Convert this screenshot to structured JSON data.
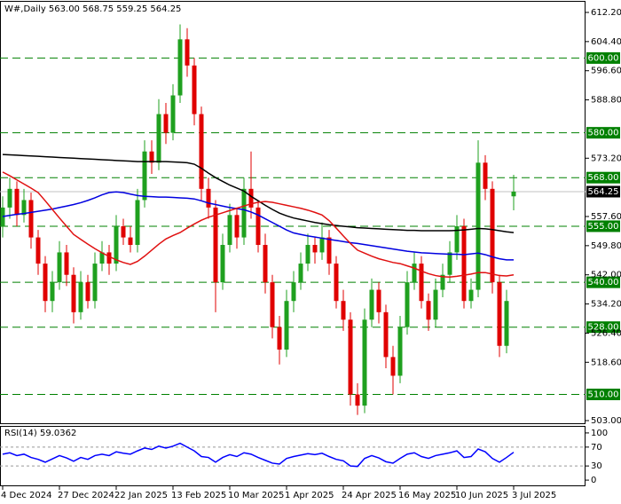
{
  "chart_data": [
    {
      "type": "candlestick",
      "title": "W#,Daily  563.00 568.75 559.25 564.25",
      "categories": [
        "4 Dec 2024",
        null,
        null,
        null,
        null,
        null,
        null,
        null,
        "27 Dec 2024",
        null,
        null,
        null,
        null,
        null,
        null,
        null,
        "22 Jan 2025",
        null,
        null,
        null,
        null,
        null,
        null,
        null,
        "13 Feb 2025",
        null,
        null,
        null,
        null,
        null,
        null,
        null,
        "10 Mar 2025",
        null,
        null,
        null,
        null,
        null,
        null,
        null,
        "1 Apr 2025",
        null,
        null,
        null,
        null,
        null,
        null,
        null,
        "24 Apr 2025",
        null,
        null,
        null,
        null,
        null,
        null,
        null,
        "16 May 2025",
        null,
        null,
        null,
        null,
        null,
        null,
        null,
        "10 Jun 2025",
        null,
        null,
        null,
        null,
        null,
        null,
        null,
        "3 Jul 2025"
      ],
      "open": [
        555,
        560,
        565,
        558,
        562,
        552,
        545,
        535,
        540,
        548,
        542,
        532,
        540,
        535,
        545,
        548,
        545,
        555,
        552,
        550,
        562,
        575,
        572,
        585,
        580,
        590,
        605,
        598,
        585,
        565,
        560,
        540,
        550,
        558,
        552,
        565,
        560,
        550,
        540,
        528,
        522,
        535,
        540,
        545,
        550,
        548,
        552,
        545,
        535,
        530,
        510,
        507,
        530,
        538,
        532,
        520,
        515,
        528,
        540,
        545,
        535,
        530,
        538,
        542,
        548,
        555,
        535,
        538,
        572,
        565,
        540,
        523,
        563
      ],
      "high": [
        563,
        568,
        567,
        565,
        564,
        554,
        547,
        543,
        551,
        550,
        544,
        543,
        542,
        548,
        551,
        550,
        558,
        557,
        555,
        565,
        578,
        578,
        589,
        588,
        593,
        609,
        608,
        600,
        587,
        568,
        562,
        553,
        561,
        560,
        568,
        575,
        562,
        553,
        542,
        531,
        538,
        543,
        548,
        553,
        552,
        556,
        554,
        547,
        538,
        532,
        513,
        533,
        541,
        540,
        534,
        523,
        531,
        543,
        548,
        547,
        537,
        541,
        545,
        551,
        558,
        557,
        541,
        578,
        574,
        567,
        542,
        538,
        568.75
      ],
      "low": [
        552,
        557,
        555,
        556,
        549,
        542,
        532,
        532,
        538,
        539,
        529,
        530,
        533,
        533,
        543,
        542,
        543,
        550,
        548,
        548,
        560,
        569,
        570,
        577,
        578,
        588,
        595,
        582,
        562,
        557,
        532,
        538,
        548,
        549,
        550,
        557,
        548,
        537,
        525,
        518,
        520,
        532,
        538,
        543,
        545,
        546,
        542,
        533,
        527,
        507,
        504.5,
        505,
        528,
        529,
        517,
        510,
        513,
        526,
        538,
        533,
        527,
        528,
        536,
        540,
        546,
        533,
        533,
        536,
        562,
        537,
        520,
        521,
        559.25
      ],
      "close": [
        560,
        565,
        558,
        562,
        552,
        545,
        535,
        540,
        548,
        542,
        532,
        540,
        535,
        545,
        548,
        545,
        555,
        552,
        550,
        562,
        575,
        572,
        585,
        580,
        590,
        605,
        598,
        585,
        565,
        560,
        540,
        550,
        558,
        552,
        565,
        560,
        550,
        540,
        528,
        522,
        535,
        540,
        545,
        550,
        548,
        552,
        545,
        535,
        530,
        510,
        507,
        530,
        538,
        532,
        520,
        515,
        528,
        540,
        545,
        535,
        530,
        538,
        542,
        548,
        555,
        535,
        538,
        572,
        565,
        540,
        523,
        535,
        564.25
      ],
      "up_color": "#1fa01f",
      "down_color": "#e00000",
      "series": [
        {
          "color": "#000000",
          "values": [
            574.2,
            574.1,
            574.0,
            573.9,
            573.8,
            573.7,
            573.6,
            573.5,
            573.4,
            573.3,
            573.2,
            573.1,
            573.0,
            572.9,
            572.8,
            572.7,
            572.6,
            572.5,
            572.4,
            572.3,
            572.3,
            572.3,
            572.3,
            572.3,
            572.2,
            572.1,
            572.0,
            571.6,
            570.5,
            569.2,
            568.0,
            567.0,
            566.0,
            565.2,
            564.4,
            563.0,
            561.8,
            560.6,
            559.5,
            558.5,
            557.8,
            557.2,
            556.8,
            556.4,
            556.0,
            555.7,
            555.4,
            555.2,
            555.0,
            554.8,
            554.6,
            554.5,
            554.4,
            554.3,
            554.2,
            554.1,
            554.0,
            553.9,
            553.9,
            553.8,
            553.8,
            553.8,
            553.8,
            553.8,
            553.9,
            554.0,
            554.2,
            554.4,
            554.3,
            554.1,
            553.8,
            553.5,
            553.3
          ]
        },
        {
          "color": "#0000e0",
          "values": [
            557.6,
            557.9,
            558.2,
            558.4,
            558.7,
            559.0,
            559.3,
            559.6,
            560.0,
            560.4,
            560.8,
            561.3,
            561.9,
            562.6,
            563.4,
            564.0,
            564.2,
            564.0,
            563.6,
            563.2,
            563.0,
            562.9,
            562.8,
            562.8,
            562.7,
            562.6,
            562.5,
            562.3,
            561.8,
            561.2,
            560.8,
            560.4,
            560.0,
            559.7,
            559.4,
            558.8,
            558.0,
            557.0,
            556.0,
            555.0,
            554.0,
            553.2,
            552.8,
            552.4,
            552.1,
            551.8,
            551.5,
            551.2,
            550.9,
            550.6,
            550.4,
            550.1,
            549.8,
            549.5,
            549.2,
            548.9,
            548.6,
            548.3,
            548.1,
            547.9,
            547.8,
            547.7,
            547.6,
            547.5,
            547.5,
            547.4,
            547.6,
            547.8,
            547.4,
            546.8,
            546.3,
            546.0,
            546.0
          ]
        },
        {
          "color": "#e01010",
          "values": [
            569.5,
            568.5,
            567.4,
            566.3,
            565.2,
            564.0,
            561.8,
            559.5,
            557.2,
            555.0,
            552.8,
            551.5,
            550.2,
            549.0,
            547.9,
            546.9,
            546.0,
            545.3,
            544.8,
            545.6,
            547.0,
            548.6,
            550.2,
            551.6,
            552.5,
            553.3,
            554.5,
            555.6,
            556.6,
            557.4,
            558.0,
            558.6,
            559.2,
            559.8,
            560.4,
            561.0,
            561.4,
            561.6,
            561.4,
            561.0,
            560.6,
            560.2,
            559.8,
            559.3,
            558.7,
            558.0,
            556.5,
            554.5,
            552.4,
            550.4,
            548.6,
            547.8,
            547.0,
            546.3,
            545.8,
            545.3,
            545.0,
            544.4,
            543.8,
            543.0,
            542.3,
            541.8,
            541.5,
            541.4,
            541.6,
            541.9,
            542.2,
            542.6,
            542.6,
            542.2,
            541.8,
            541.7,
            542.0
          ]
        }
      ],
      "levels": [
        {
          "value": 600,
          "label": "600.00"
        },
        {
          "value": 580,
          "label": "580.00"
        },
        {
          "value": 568,
          "label": "568.00"
        },
        {
          "value": 555,
          "label": "555.00"
        },
        {
          "value": 540,
          "label": "540.00"
        },
        {
          "value": 528,
          "label": "528.00"
        },
        {
          "value": 510,
          "label": "510.00"
        }
      ],
      "level_color": "#008000",
      "last_price": {
        "value": 564.25,
        "label": "564.25"
      },
      "ylim": [
        502.05,
        615.05
      ],
      "yticks": [
        {
          "value": 612.2,
          "label": "612.20"
        },
        {
          "value": 604.4,
          "label": "604.40"
        },
        {
          "value": 596.6,
          "label": "596.60"
        },
        {
          "value": 588.8,
          "label": "588.80"
        },
        {
          "value": 573.2,
          "label": "573.20"
        },
        {
          "value": 557.6,
          "label": "557.60"
        },
        {
          "value": 549.8,
          "label": "549.80"
        },
        {
          "value": 542,
          "label": "542.00"
        },
        {
          "value": 534.2,
          "label": "534.20"
        },
        {
          "value": 526.4,
          "label": "526.40"
        },
        {
          "value": 518.6,
          "label": "518.60"
        },
        {
          "value": 503,
          "label": "503.00"
        }
      ]
    },
    {
      "type": "line",
      "title": "RSI(14) 59.0362",
      "color": "#0000ff",
      "values": [
        55,
        58,
        52,
        55,
        48,
        44,
        38,
        45,
        52,
        47,
        40,
        48,
        44,
        52,
        55,
        52,
        60,
        57,
        55,
        62,
        68,
        65,
        72,
        68,
        72,
        78,
        70,
        62,
        50,
        48,
        38,
        48,
        54,
        50,
        58,
        55,
        48,
        42,
        36,
        34,
        46,
        50,
        53,
        56,
        54,
        57,
        50,
        44,
        41,
        30,
        29,
        46,
        52,
        47,
        39,
        36,
        46,
        55,
        58,
        50,
        46,
        52,
        55,
        58,
        62,
        48,
        50,
        66,
        60,
        46,
        38,
        48,
        59.0362
      ],
      "levels": [
        30,
        70
      ],
      "ylim": [
        -13,
        113
      ],
      "yticks": [
        0,
        30,
        70,
        100
      ]
    }
  ]
}
